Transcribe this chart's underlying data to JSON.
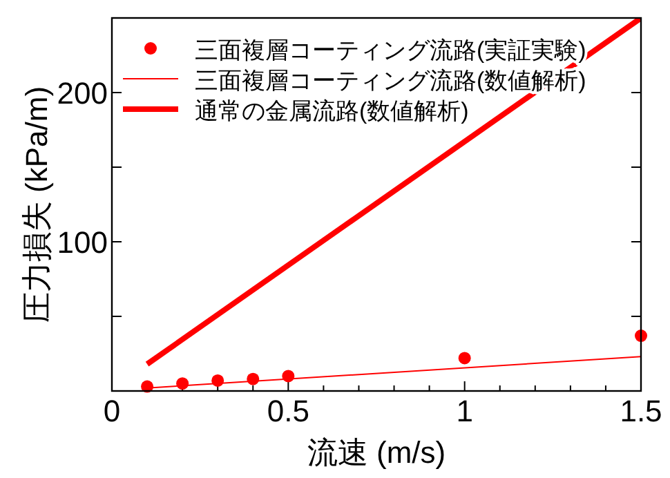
{
  "chart_data": {
    "type": "line",
    "xlabel": "流速 (m/s)",
    "ylabel": "圧力損失 (kPa/m)",
    "xlim": [
      0,
      1.5
    ],
    "ylim": [
      0,
      250
    ],
    "xticks": [
      0,
      {
        "value": 0.1,
        "label": null
      },
      {
        "value": 0.2,
        "label": null
      },
      {
        "value": 0.3,
        "label": null
      },
      {
        "value": 0.4,
        "label": null
      },
      0.5,
      {
        "value": 0.6,
        "label": null
      },
      {
        "value": 0.7,
        "label": null
      },
      {
        "value": 0.8,
        "label": null
      },
      {
        "value": 0.9,
        "label": null
      },
      1,
      {
        "value": 1.1,
        "label": null
      },
      {
        "value": 1.2,
        "label": null
      },
      {
        "value": 1.3,
        "label": null
      },
      {
        "value": 1.4,
        "label": null
      },
      1.5
    ],
    "yticks": [
      {
        "value": 50,
        "label": null
      },
      100,
      {
        "value": 150,
        "label": null
      },
      200
    ],
    "grid": false,
    "legend": "top left",
    "series": [
      {
        "name": "三面複層コーティング流路(実証実験)",
        "type": "scatter",
        "marker": "circle",
        "color": "#ff0000",
        "x": [
          0.1,
          0.2,
          0.3,
          0.4,
          0.5,
          1,
          1.5
        ],
        "values": [
          3,
          5,
          7,
          8,
          10,
          22,
          37
        ]
      },
      {
        "name": "三面複層コーティング流路(数値解析)",
        "type": "line",
        "line_style": "solid",
        "color": "#ff0000",
        "x": [
          0.1,
          1.5
        ],
        "values": [
          2,
          23
        ]
      },
      {
        "name": "通常の金属流路(数値解析)",
        "type": "line",
        "line_style": "solid",
        "color": "#ff0000",
        "x": [
          0.1,
          1.5
        ],
        "values": [
          18,
          250
        ]
      }
    ]
  }
}
